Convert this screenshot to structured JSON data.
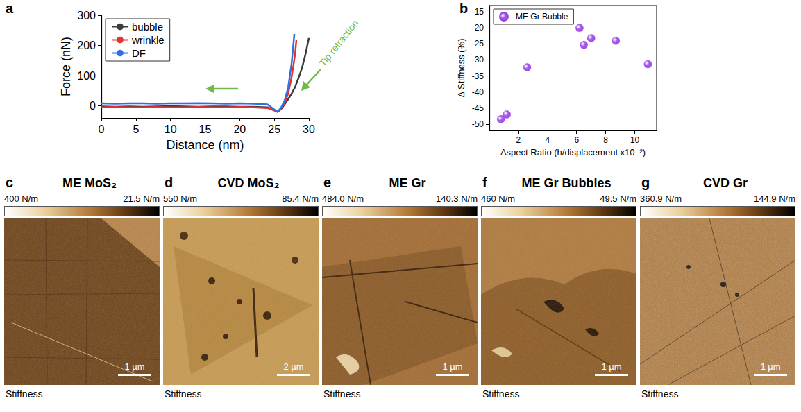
{
  "chart_data": [
    {
      "panel": "a",
      "type": "line",
      "x_label": "Distance (nm)",
      "y_label": "Force (nN)",
      "xlim": [
        0,
        30
      ],
      "xticks": [
        0,
        5,
        10,
        15,
        20,
        25,
        30
      ],
      "ylim": [
        -40,
        300
      ],
      "yticks": [
        0,
        100,
        200,
        300
      ],
      "grid": false,
      "legend": "upper left",
      "annotations": [
        "Tip retraction"
      ],
      "series": [
        {
          "name": "bubble",
          "color": "#3c3c3c",
          "x": [
            0,
            2,
            4,
            6,
            8,
            10,
            12,
            14,
            16,
            18,
            20,
            22,
            24,
            25,
            25.5,
            26,
            26.5,
            27,
            27.5,
            28,
            28.5,
            29,
            29.5,
            30
          ],
          "values": [
            -2,
            -3,
            -2,
            -3,
            -2,
            -1,
            -2,
            -3,
            -2,
            -2,
            -3,
            -3,
            -5,
            -15,
            -20,
            -10,
            5,
            22,
            40,
            62,
            92,
            125,
            170,
            225
          ]
        },
        {
          "name": "wrinkle",
          "color": "#e8312f",
          "x": [
            0,
            2,
            4,
            6,
            8,
            10,
            12,
            14,
            16,
            18,
            20,
            22,
            24,
            25,
            25.5,
            26,
            26.5,
            27,
            27.5,
            28,
            28.2
          ],
          "values": [
            -5,
            -4,
            -5,
            -5,
            -4,
            -5,
            -5,
            -4,
            -5,
            -5,
            -4,
            -5,
            -7,
            -15,
            -20,
            -8,
            10,
            40,
            95,
            170,
            220
          ]
        },
        {
          "name": "DF",
          "color": "#2f6fe0",
          "x": [
            0,
            2,
            4,
            6,
            8,
            10,
            12,
            14,
            16,
            18,
            20,
            22,
            24,
            25,
            25.5,
            26,
            26.5,
            27,
            27.5,
            27.9
          ],
          "values": [
            8,
            7,
            8,
            8,
            7,
            8,
            8,
            9,
            8,
            7,
            8,
            7,
            5,
            -12,
            -20,
            -5,
            18,
            60,
            140,
            238
          ]
        }
      ]
    },
    {
      "panel": "b",
      "type": "scatter",
      "x_label": "Aspect Ratio (h/displacement x10⁻²)",
      "y_label": "Δ Stiffness (%)",
      "xlim": [
        0,
        11.5
      ],
      "xticks": [
        2,
        4,
        6,
        8,
        10
      ],
      "ylim": [
        -52,
        -13
      ],
      "yticks": [
        -50,
        -45,
        -40,
        -35,
        -30,
        -25,
        -20,
        -15
      ],
      "grid": false,
      "legend": "upper left",
      "series": [
        {
          "name": "ME Gr Bubble",
          "color": "#8b2be0",
          "marker": "circle",
          "x": [
            0.8,
            1.2,
            2.6,
            6.2,
            6.5,
            7.0,
            8.7,
            10.9
          ],
          "values": [
            -48.5,
            -47,
            -32.3,
            -20,
            -25.3,
            -23.2,
            -24,
            -31.3
          ]
        }
      ]
    }
  ],
  "image_panels": [
    {
      "panel": "c",
      "title": "ME MoS₂",
      "colorbar": [
        "400 N/m",
        "21.5 N/m"
      ],
      "scale_bar": "1 µm",
      "caption": "Stiffness"
    },
    {
      "panel": "d",
      "title": "CVD MoS₂",
      "colorbar": [
        "550 N/m",
        "85.4 N/m"
      ],
      "scale_bar": "2 µm",
      "caption": "Stiffness"
    },
    {
      "panel": "e",
      "title": "ME Gr",
      "colorbar": [
        "484.0 N/m",
        "140.3 N/m"
      ],
      "scale_bar": "1 µm",
      "caption": "Stiffness"
    },
    {
      "panel": "f",
      "title": "ME Gr Bubbles",
      "colorbar": [
        "460 N/m",
        "49.5 N/m"
      ],
      "scale_bar": "1 µm",
      "caption": "Stiffness"
    },
    {
      "panel": "g",
      "title": "CVD Gr",
      "colorbar": [
        "360.9 N/m",
        "144.9 N/m"
      ],
      "scale_bar": "1 µm",
      "caption": "Stiffness"
    }
  ]
}
